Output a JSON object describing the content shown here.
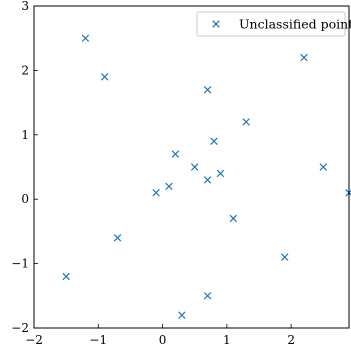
{
  "chart_data": {
    "type": "scatter",
    "title": "",
    "xlabel": "",
    "ylabel": "",
    "xlim": [
      -2,
      2.9
    ],
    "ylim": [
      -2,
      3
    ],
    "xticks": [
      -2,
      -1,
      0,
      1,
      2
    ],
    "yticks": [
      -2,
      -1,
      0,
      1,
      2,
      3
    ],
    "xtick_labels": [
      "−2",
      "−1",
      "0",
      "1",
      "2"
    ],
    "ytick_labels": [
      "−2",
      "−1",
      "0",
      "1",
      "2",
      "3"
    ],
    "grid": false,
    "legend_position": "top-right",
    "marker": "x",
    "series": [
      {
        "name": "Unclassified points",
        "color": "#1f77b4",
        "points": [
          [
            -1.5,
            -1.2
          ],
          [
            -1.2,
            2.5
          ],
          [
            -0.9,
            1.9
          ],
          [
            -0.7,
            -0.6
          ],
          [
            -0.1,
            0.1
          ],
          [
            0.1,
            0.2
          ],
          [
            0.2,
            0.7
          ],
          [
            0.3,
            -1.8
          ],
          [
            0.5,
            0.5
          ],
          [
            0.7,
            1.7
          ],
          [
            0.7,
            0.3
          ],
          [
            0.7,
            -1.5
          ],
          [
            0.8,
            0.9
          ],
          [
            0.9,
            0.4
          ],
          [
            1.1,
            -0.3
          ],
          [
            1.3,
            1.2
          ],
          [
            1.9,
            -0.9
          ],
          [
            2.2,
            2.2
          ],
          [
            2.5,
            0.5
          ],
          [
            2.9,
            0.1
          ]
        ]
      }
    ]
  }
}
